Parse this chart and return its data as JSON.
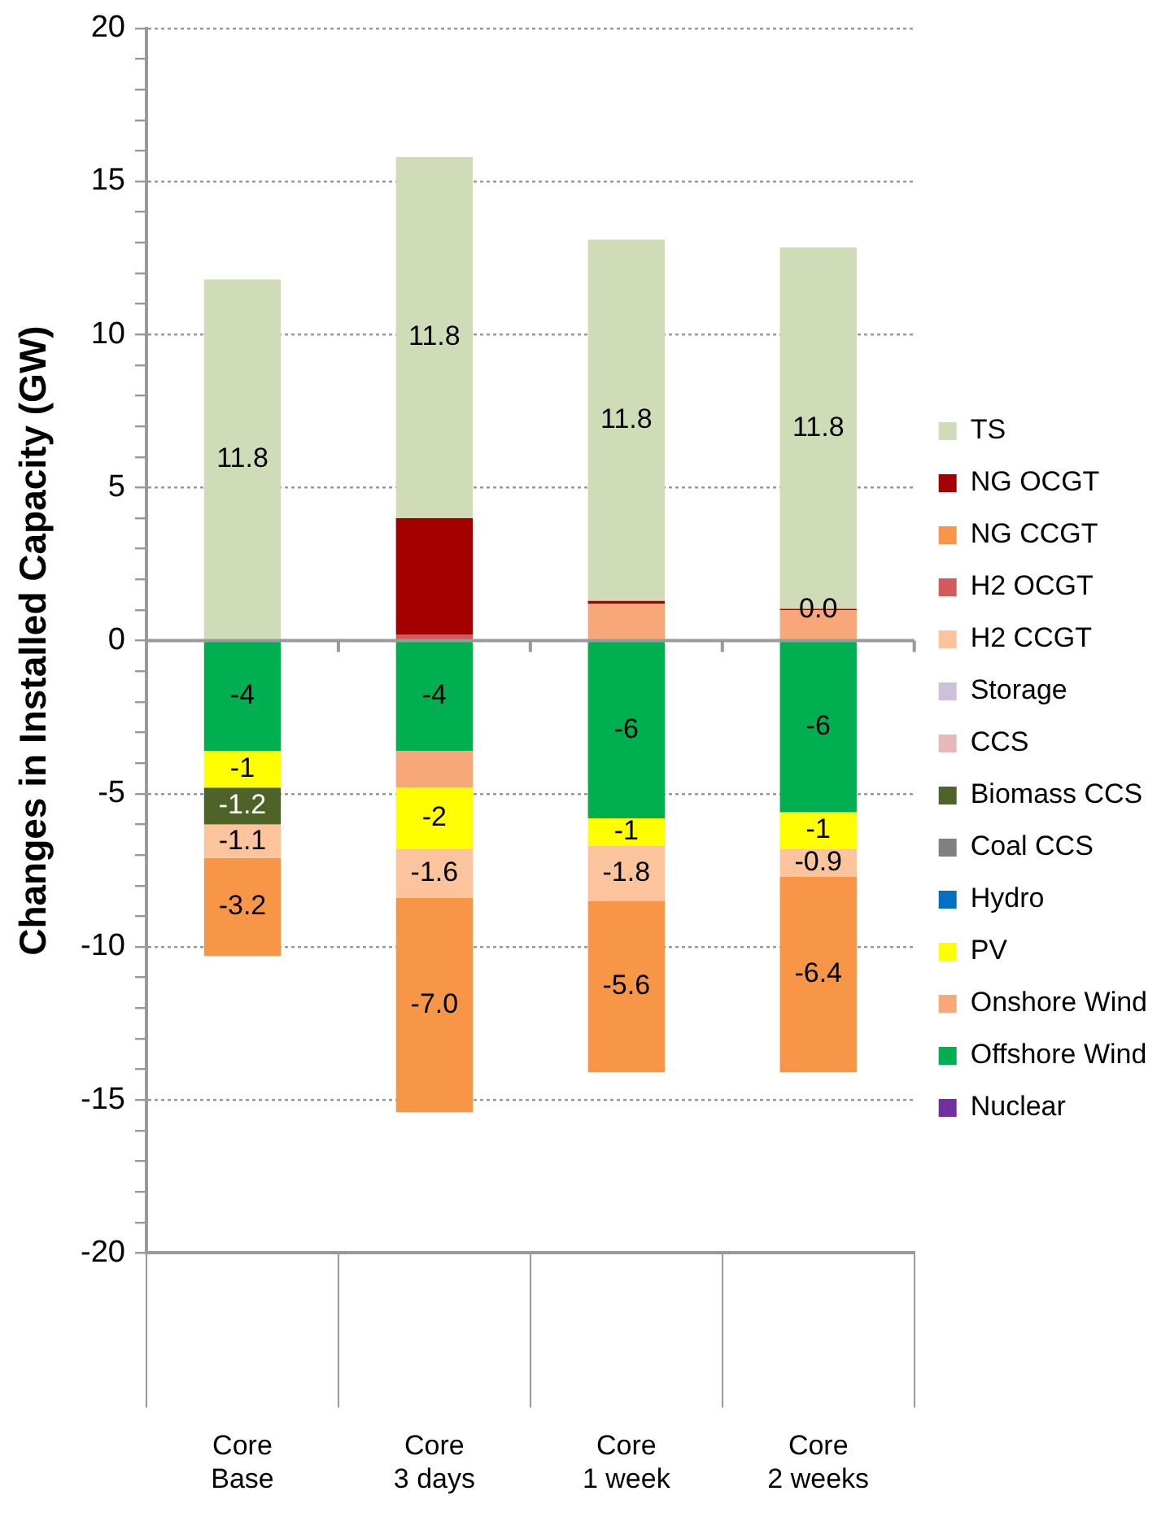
{
  "chart_data": {
    "type": "bar",
    "stacked": true,
    "ylabel": "Changes in Installed Capacity (GW)",
    "categories": [
      "Core\nBase",
      "Core\n3 days",
      "Core\n1 week",
      "Core\n2 weeks"
    ],
    "ylim": [
      -20,
      20
    ],
    "yticks": [
      -20,
      {
        "value": -19,
        "label": null
      },
      {
        "value": -18,
        "label": null
      },
      {
        "value": -17,
        "label": null
      },
      {
        "value": -16,
        "label": null
      },
      -15,
      {
        "value": -14,
        "label": null
      },
      {
        "value": -13,
        "label": null
      },
      {
        "value": -12,
        "label": null
      },
      {
        "value": -11,
        "label": null
      },
      -10,
      {
        "value": -9,
        "label": null
      },
      {
        "value": -8,
        "label": null
      },
      {
        "value": -7,
        "label": null
      },
      {
        "value": -6,
        "label": null
      },
      -5,
      {
        "value": -4,
        "label": null
      },
      {
        "value": -3,
        "label": null
      },
      {
        "value": -2,
        "label": null
      },
      {
        "value": -1,
        "label": null
      },
      0,
      {
        "value": 1,
        "label": null
      },
      {
        "value": 2,
        "label": null
      },
      {
        "value": 3,
        "label": null
      },
      {
        "value": 4,
        "label": null
      },
      5,
      {
        "value": 6,
        "label": null
      },
      {
        "value": 7,
        "label": null
      },
      {
        "value": 8,
        "label": null
      },
      {
        "value": 9,
        "label": null
      },
      10,
      {
        "value": 11,
        "label": null
      },
      {
        "value": 12,
        "label": null
      },
      {
        "value": 13,
        "label": null
      },
      {
        "value": 14,
        "label": null
      },
      15,
      {
        "value": 16,
        "label": null
      },
      {
        "value": 17,
        "label": null
      },
      {
        "value": 18,
        "label": null
      },
      {
        "value": 19,
        "label": null
      },
      20
    ],
    "grid": "y",
    "legend": "right",
    "series": [
      {
        "name": "Nuclear",
        "color": "#7030a0",
        "values": [
          null,
          null,
          null,
          null
        ]
      },
      {
        "name": "Offshore Wind",
        "color": "#00b050",
        "values": [
          -3.6,
          -3.6,
          -5.8,
          -5.6
        ],
        "value_labels": [
          "-4",
          "-4",
          "-6",
          "-6"
        ]
      },
      {
        "name": "Onshore Wind",
        "color": "#f8a878",
        "values": [
          null,
          -1.2,
          1.2,
          1.0
        ]
      },
      {
        "name": "PV",
        "color": "#ffff00",
        "values": [
          -1.2,
          -2.0,
          -0.9,
          -1.2
        ],
        "value_labels": [
          "-1",
          "-2",
          "-1",
          "-1"
        ]
      },
      {
        "name": "Hydro",
        "color": "#0070c0",
        "values": [
          null,
          null,
          null,
          null
        ]
      },
      {
        "name": "Coal CCS",
        "color": "#808080",
        "values": [
          null,
          null,
          null,
          null
        ]
      },
      {
        "name": "Biomass CCS",
        "color": "#4f6228",
        "values": [
          -1.2,
          null,
          null,
          null
        ],
        "value_labels": [
          "-1.2",
          null,
          null,
          null
        ]
      },
      {
        "name": "CCS",
        "color": "#e6b9b8",
        "values": [
          null,
          null,
          null,
          null
        ]
      },
      {
        "name": "Storage",
        "color": "#ccc0da",
        "values": [
          null,
          null,
          null,
          null
        ]
      },
      {
        "name": "H2 CCGT",
        "color": "#fbc49c",
        "values": [
          -1.1,
          -1.6,
          -1.8,
          -0.9
        ],
        "value_labels": [
          "-1.1",
          "-1.6",
          "-1.8",
          "-0.9"
        ]
      },
      {
        "name": "H2 OCGT",
        "color": "#d35a5a",
        "values": [
          null,
          0.2,
          null,
          null
        ]
      },
      {
        "name": "NG CCGT",
        "color": "#f79646",
        "values": [
          -3.2,
          -7.0,
          -5.6,
          -6.4
        ],
        "value_labels": [
          "-3.2",
          "-7.0",
          "-5.6",
          "-6.4"
        ]
      },
      {
        "name": "NG OCGT",
        "color": "#a50000",
        "values": [
          null,
          3.8,
          0.1,
          0.04
        ],
        "value_labels": [
          null,
          null,
          null,
          "0.0"
        ]
      },
      {
        "name": "TS",
        "color": "#d0dcb8",
        "values": [
          11.8,
          11.8,
          11.8,
          11.8
        ],
        "value_labels": [
          "11.8",
          "11.8",
          "11.8",
          "11.8"
        ]
      }
    ]
  }
}
